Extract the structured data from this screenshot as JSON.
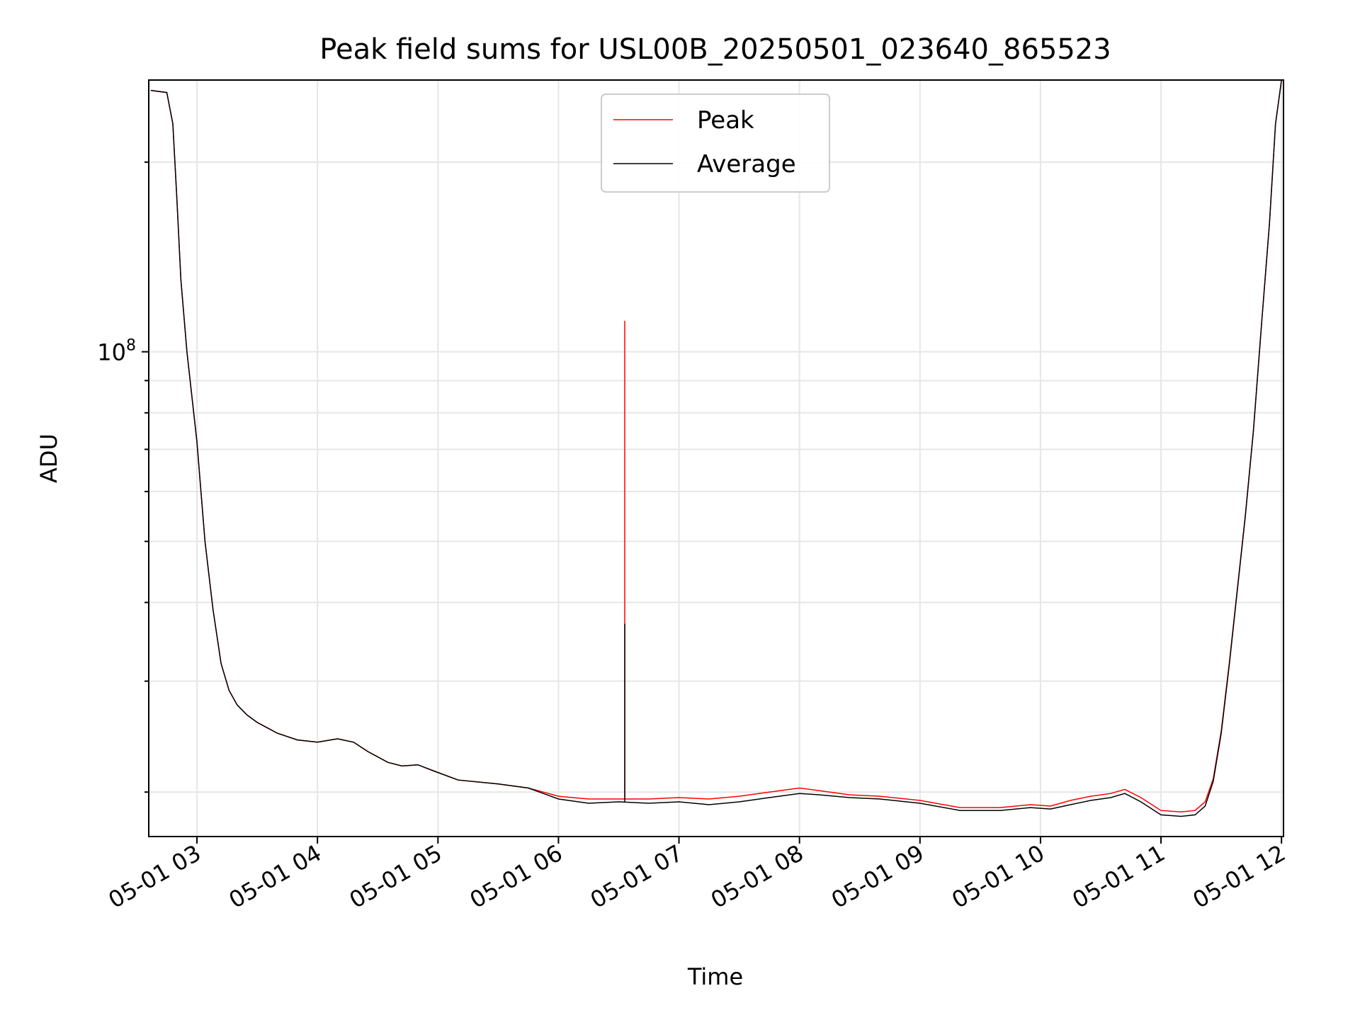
{
  "chart_data": {
    "type": "line",
    "title": "Peak field sums for USL00B_20250501_023640_865523",
    "xlabel": "Time",
    "ylabel": "ADU",
    "yscale": "log",
    "grid": true,
    "legend_position": "upper center",
    "x_ticks": [
      "05-01 03",
      "05-01 04",
      "05-01 05",
      "05-01 06",
      "05-01 07",
      "05-01 08",
      "05-01 09",
      "05-01 10",
      "05-01 11",
      "05-01 12"
    ],
    "y_tick_label": "10^8",
    "xlim": [
      "2025-05-01 02:36",
      "2025-05-01 12:01"
    ],
    "ylim": [
      17000000,
      270000000
    ],
    "series": [
      {
        "name": "Peak",
        "color": "#ff0000",
        "x": [
          "2025-05-01 02:37",
          "2025-05-01 02:45",
          "2025-05-01 02:48",
          "2025-05-01 02:50",
          "2025-05-01 02:52",
          "2025-05-01 02:55",
          "2025-05-01 03:00",
          "2025-05-01 03:04",
          "2025-05-01 03:08",
          "2025-05-01 03:12",
          "2025-05-01 03:16",
          "2025-05-01 03:20",
          "2025-05-01 03:25",
          "2025-05-01 03:30",
          "2025-05-01 03:40",
          "2025-05-01 03:50",
          "2025-05-01 04:00",
          "2025-05-01 04:10",
          "2025-05-01 04:18",
          "2025-05-01 04:25",
          "2025-05-01 04:35",
          "2025-05-01 04:42",
          "2025-05-01 04:50",
          "2025-05-01 04:58",
          "2025-05-01 05:10",
          "2025-05-01 05:30",
          "2025-05-01 05:45",
          "2025-05-01 06:00",
          "2025-05-01 06:15",
          "2025-05-01 06:30",
          "2025-05-01 06:45",
          "2025-05-01 07:00",
          "2025-05-01 07:15",
          "2025-05-01 07:30",
          "2025-05-01 07:45",
          "2025-05-01 08:00",
          "2025-05-01 08:10",
          "2025-05-01 08:25",
          "2025-05-01 08:40",
          "2025-05-01 09:00",
          "2025-05-01 09:20",
          "2025-05-01 09:40",
          "2025-05-01 09:55",
          "2025-05-01 10:05",
          "2025-05-01 10:15",
          "2025-05-01 10:25",
          "2025-05-01 10:35",
          "2025-05-01 10:42",
          "2025-05-01 10:50",
          "2025-05-01 11:00",
          "2025-05-01 11:10",
          "2025-05-01 11:17",
          "2025-05-01 11:22",
          "2025-05-01 11:26",
          "2025-05-01 11:30",
          "2025-05-01 11:34",
          "2025-05-01 11:38",
          "2025-05-01 11:42",
          "2025-05-01 11:46",
          "2025-05-01 11:50",
          "2025-05-01 11:54",
          "2025-05-01 11:57",
          "2025-05-01 12:00"
        ],
        "values": [
          260000000,
          258000000,
          230000000,
          175000000,
          130000000,
          100000000,
          72000000,
          50000000,
          39000000,
          32000000,
          29000000,
          27500000,
          26500000,
          25800000,
          24800000,
          24200000,
          24000000,
          24300000,
          24000000,
          23200000,
          22300000,
          22000000,
          22100000,
          21600000,
          20900000,
          20600000,
          20300000,
          19700000,
          19500000,
          19500000,
          19500000,
          19600000,
          19500000,
          19700000,
          20000000,
          20300000,
          20100000,
          19800000,
          19700000,
          19400000,
          18900000,
          18900000,
          19100000,
          19000000,
          19400000,
          19700000,
          19900000,
          20200000,
          19600000,
          18700000,
          18600000,
          18700000,
          19300000,
          21000000,
          25000000,
          32000000,
          42000000,
          55000000,
          75000000,
          110000000,
          160000000,
          230000000,
          270000000
        ],
        "spikes": [
          {
            "x": "2025-05-01 06:33",
            "value": 112000000
          }
        ]
      },
      {
        "name": "Average",
        "color": "#000000",
        "x": [
          "2025-05-01 02:37",
          "2025-05-01 02:45",
          "2025-05-01 02:48",
          "2025-05-01 02:50",
          "2025-05-01 02:52",
          "2025-05-01 02:55",
          "2025-05-01 03:00",
          "2025-05-01 03:04",
          "2025-05-01 03:08",
          "2025-05-01 03:12",
          "2025-05-01 03:16",
          "2025-05-01 03:20",
          "2025-05-01 03:25",
          "2025-05-01 03:30",
          "2025-05-01 03:40",
          "2025-05-01 03:50",
          "2025-05-01 04:00",
          "2025-05-01 04:10",
          "2025-05-01 04:18",
          "2025-05-01 04:25",
          "2025-05-01 04:35",
          "2025-05-01 04:42",
          "2025-05-01 04:50",
          "2025-05-01 04:58",
          "2025-05-01 05:10",
          "2025-05-01 05:30",
          "2025-05-01 05:45",
          "2025-05-01 06:00",
          "2025-05-01 06:15",
          "2025-05-01 06:30",
          "2025-05-01 06:45",
          "2025-05-01 07:00",
          "2025-05-01 07:15",
          "2025-05-01 07:30",
          "2025-05-01 07:45",
          "2025-05-01 08:00",
          "2025-05-01 08:10",
          "2025-05-01 08:25",
          "2025-05-01 08:40",
          "2025-05-01 09:00",
          "2025-05-01 09:20",
          "2025-05-01 09:40",
          "2025-05-01 09:55",
          "2025-05-01 10:05",
          "2025-05-01 10:15",
          "2025-05-01 10:25",
          "2025-05-01 10:35",
          "2025-05-01 10:42",
          "2025-05-01 10:50",
          "2025-05-01 11:00",
          "2025-05-01 11:10",
          "2025-05-01 11:17",
          "2025-05-01 11:22",
          "2025-05-01 11:26",
          "2025-05-01 11:30",
          "2025-05-01 11:34",
          "2025-05-01 11:38",
          "2025-05-01 11:42",
          "2025-05-01 11:46",
          "2025-05-01 11:50",
          "2025-05-01 11:54",
          "2025-05-01 11:57",
          "2025-05-01 12:00"
        ],
        "values": [
          260000000,
          258000000,
          230000000,
          175000000,
          130000000,
          100000000,
          72000000,
          50000000,
          39000000,
          32000000,
          29000000,
          27500000,
          26500000,
          25800000,
          24800000,
          24200000,
          24000000,
          24300000,
          24000000,
          23200000,
          22300000,
          22000000,
          22100000,
          21600000,
          20900000,
          20600000,
          20300000,
          19500000,
          19200000,
          19300000,
          19200000,
          19300000,
          19100000,
          19300000,
          19600000,
          19900000,
          19800000,
          19600000,
          19500000,
          19200000,
          18700000,
          18700000,
          18900000,
          18800000,
          19100000,
          19400000,
          19600000,
          19900000,
          19300000,
          18400000,
          18300000,
          18400000,
          19000000,
          20800000,
          24800000,
          31800000,
          41800000,
          54800000,
          74800000,
          109800000,
          159800000,
          229800000,
          270000000
        ],
        "spikes": [
          {
            "x": "2025-05-01 06:33",
            "value": 37000000
          }
        ]
      }
    ]
  }
}
